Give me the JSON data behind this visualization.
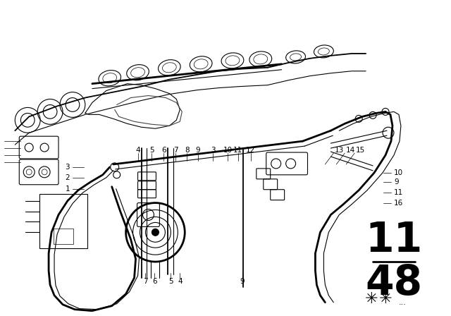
{
  "bg_color": "#ffffff",
  "line_color": "#000000",
  "fig_number": "11",
  "fig_sub": "48",
  "lw_thick": 2.0,
  "lw_med": 1.3,
  "lw_thin": 0.8,
  "lw_vt": 0.5,
  "label_top_row": [
    [
      "4",
      195,
      213
    ],
    [
      "5",
      215,
      213
    ],
    [
      "6",
      232,
      213
    ],
    [
      "7",
      249,
      213
    ],
    [
      "8",
      265,
      213
    ],
    [
      "9",
      281,
      213
    ],
    [
      "3",
      302,
      213
    ],
    [
      "10",
      323,
      213
    ],
    [
      "11",
      338,
      213
    ],
    [
      "12",
      356,
      213
    ]
  ],
  "label_right_diag": [
    [
      "13",
      482,
      213
    ],
    [
      "14",
      498,
      213
    ],
    [
      "15",
      512,
      213
    ]
  ],
  "label_right_side": [
    [
      "10",
      560,
      245
    ],
    [
      "9",
      560,
      258
    ],
    [
      "11",
      560,
      273
    ],
    [
      "16",
      560,
      288
    ]
  ],
  "label_left_side": [
    [
      "3",
      98,
      237
    ],
    [
      "2",
      98,
      252
    ],
    [
      "1",
      98,
      268
    ]
  ],
  "label_bottom": [
    [
      "7",
      206,
      400
    ],
    [
      "6",
      219,
      400
    ],
    [
      "5",
      242,
      400
    ],
    [
      "4",
      255,
      400
    ],
    [
      "9",
      344,
      400
    ]
  ]
}
